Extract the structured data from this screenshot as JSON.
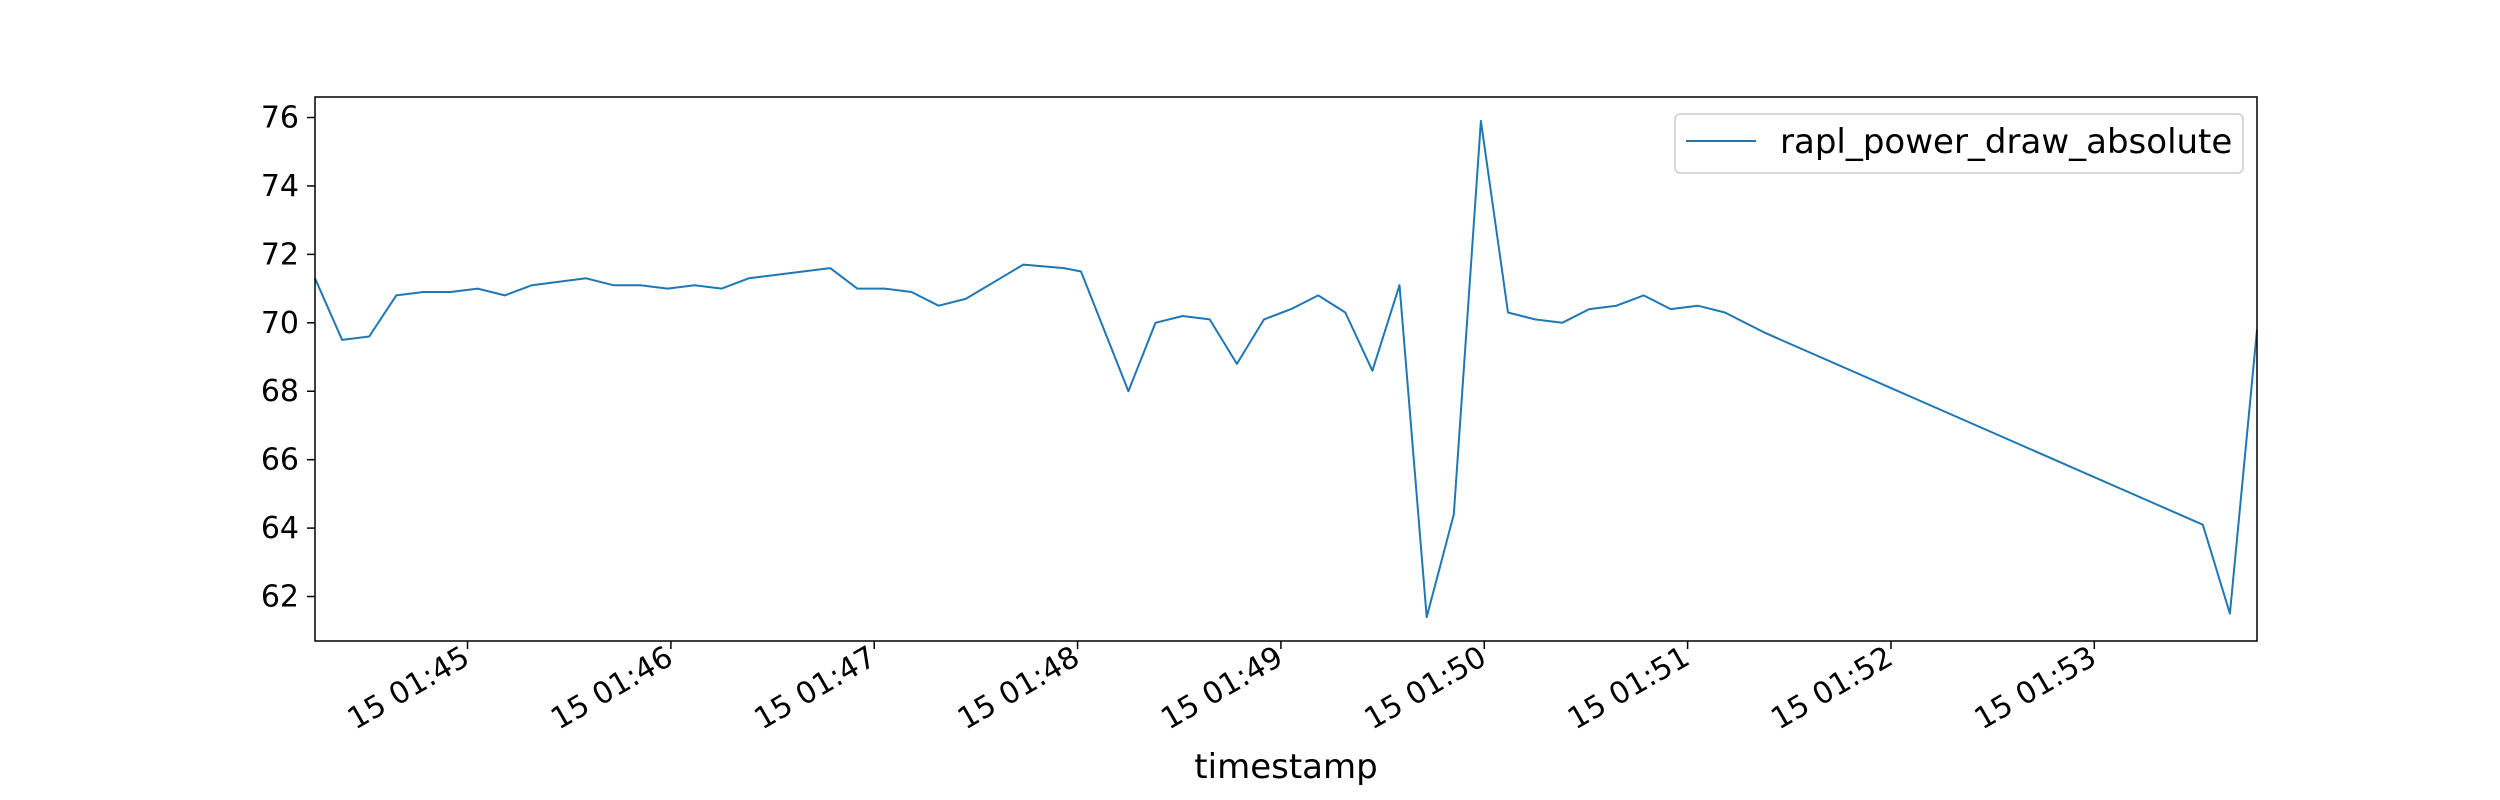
{
  "chart_data": {
    "type": "line",
    "title": "",
    "xlabel": "timestamp",
    "ylabel": "",
    "x_unit": "time (MM:SS after 01:00 on day 15)",
    "x_ticks": [
      {
        "x": "01:45",
        "label": "15 01:45"
      },
      {
        "x": "01:46",
        "label": "15 01:46"
      },
      {
        "x": "01:47",
        "label": "15 01:47"
      },
      {
        "x": "01:48",
        "label": "15 01:48"
      },
      {
        "x": "01:49",
        "label": "15 01:49"
      },
      {
        "x": "01:50",
        "label": "15 01:50"
      },
      {
        "x": "01:51",
        "label": "15 01:51"
      },
      {
        "x": "01:52",
        "label": "15 01:52"
      },
      {
        "x": "01:53",
        "label": "15 01:53"
      }
    ],
    "xlim": [
      "01:44:15",
      "01:53:48"
    ],
    "ylim": [
      60.7,
      76.6
    ],
    "y_ticks": [
      62,
      64,
      66,
      68,
      70,
      72,
      74,
      76
    ],
    "grid": false,
    "legend_position": "top-right",
    "series": [
      {
        "name": "rapl_power_draw_absolute",
        "color": "#1f77b4",
        "points": [
          [
            "01:44:15",
            71.3
          ],
          [
            "01:44:23",
            69.5
          ],
          [
            "01:44:31",
            69.6
          ],
          [
            "01:44:39",
            70.8
          ],
          [
            "01:44:47",
            70.9
          ],
          [
            "01:44:55",
            70.9
          ],
          [
            "01:45:03",
            71.0
          ],
          [
            "01:45:11",
            70.8
          ],
          [
            "01:45:19",
            71.1
          ],
          [
            "01:45:27",
            71.2
          ],
          [
            "01:45:35",
            71.3
          ],
          [
            "01:45:43",
            71.1
          ],
          [
            "01:45:51",
            71.1
          ],
          [
            "01:45:59",
            71.0
          ],
          [
            "01:46:07",
            71.1
          ],
          [
            "01:46:15",
            71.0
          ],
          [
            "01:46:23",
            71.3
          ],
          [
            "01:46:31",
            71.4
          ],
          [
            "01:46:39",
            71.5
          ],
          [
            "01:46:47",
            71.6
          ],
          [
            "01:46:55",
            71.0
          ],
          [
            "01:47:03",
            71.0
          ],
          [
            "01:47:11",
            70.9
          ],
          [
            "01:47:19",
            70.5
          ],
          [
            "01:47:27",
            70.7
          ],
          [
            "01:47:44",
            71.7
          ],
          [
            "01:47:56",
            71.6
          ],
          [
            "01:48:01",
            71.5
          ],
          [
            "01:48:15",
            68.0
          ],
          [
            "01:48:23",
            70.0
          ],
          [
            "01:48:31",
            70.2
          ],
          [
            "01:48:39",
            70.1
          ],
          [
            "01:48:47",
            68.8
          ],
          [
            "01:48:55",
            70.1
          ],
          [
            "01:49:03",
            70.4
          ],
          [
            "01:49:11",
            70.8
          ],
          [
            "01:49:19",
            70.3
          ],
          [
            "01:49:27",
            68.6
          ],
          [
            "01:49:35",
            71.1
          ],
          [
            "01:49:43",
            61.4
          ],
          [
            "01:49:51",
            64.4
          ],
          [
            "01:49:59",
            75.9
          ],
          [
            "01:50:07",
            70.3
          ],
          [
            "01:50:15",
            70.1
          ],
          [
            "01:50:23",
            70.0
          ],
          [
            "01:50:31",
            70.4
          ],
          [
            "01:50:39",
            70.5
          ],
          [
            "01:50:47",
            70.8
          ],
          [
            "01:50:55",
            70.4
          ],
          [
            "01:51:03",
            70.5
          ],
          [
            "01:51:11",
            70.3
          ],
          [
            "01:51:23",
            69.7
          ],
          [
            "01:53:32",
            64.1
          ],
          [
            "01:53:40",
            61.5
          ],
          [
            "01:53:48",
            69.8
          ]
        ]
      }
    ]
  }
}
